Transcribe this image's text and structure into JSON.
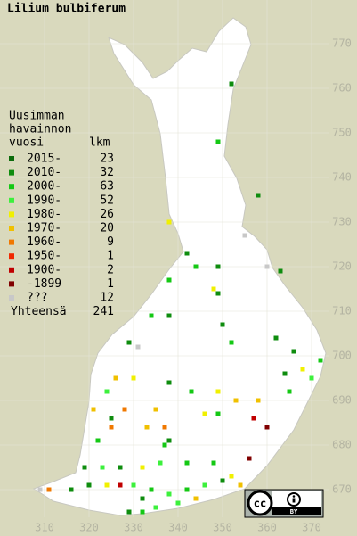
{
  "map": {
    "title": "Lilium bulbiferum",
    "legend": {
      "heading": [
        "Uusimman",
        "havainnon",
        "vuosi"
      ],
      "count_heading": "lkm",
      "items": [
        {
          "label": "2015-",
          "count": 23,
          "color": "#0c6b0c"
        },
        {
          "label": "2010-",
          "count": 32,
          "color": "#0e8c0e"
        },
        {
          "label": "2000-",
          "count": 63,
          "color": "#14c814"
        },
        {
          "label": "1990-",
          "count": 52,
          "color": "#3cf03c"
        },
        {
          "label": "1980-",
          "count": 26,
          "color": "#f0f000"
        },
        {
          "label": "1970-",
          "count": 20,
          "color": "#f0c000"
        },
        {
          "label": "1960-",
          "count": 9,
          "color": "#f07800"
        },
        {
          "label": "1950-",
          "count": 1,
          "color": "#f02800"
        },
        {
          "label": "1900-",
          "count": 2,
          "color": "#c00000"
        },
        {
          "label": "-1899",
          "count": 1,
          "color": "#800000"
        },
        {
          "label": "???",
          "count": 12,
          "color": "#c8c8c8"
        }
      ],
      "total_label": "Yhteensä",
      "total": 241
    },
    "xlim": [
      300,
      380
    ],
    "ylim": [
      660,
      780
    ],
    "xticks": [
      310,
      320,
      330,
      340,
      350,
      360,
      370
    ],
    "yticks": [
      670,
      680,
      690,
      700,
      710,
      720,
      730,
      740,
      750,
      760,
      770
    ],
    "obs": [
      [
        352,
        761,
        1
      ],
      [
        349,
        748,
        2
      ],
      [
        358,
        736,
        1
      ],
      [
        338,
        730,
        4
      ],
      [
        355,
        727,
        10
      ],
      [
        342,
        723,
        1
      ],
      [
        344,
        720,
        2
      ],
      [
        349,
        720,
        1
      ],
      [
        360,
        720,
        10
      ],
      [
        363,
        719,
        1
      ],
      [
        338,
        717,
        2
      ],
      [
        348,
        715,
        4
      ],
      [
        349,
        714,
        1
      ],
      [
        334,
        709,
        2
      ],
      [
        338,
        709,
        1
      ],
      [
        350,
        707,
        1
      ],
      [
        352,
        703,
        2
      ],
      [
        329,
        703,
        1
      ],
      [
        331,
        702,
        10
      ],
      [
        362,
        704,
        1
      ],
      [
        366,
        701,
        1
      ],
      [
        372,
        699,
        2
      ],
      [
        368,
        697,
        4
      ],
      [
        370,
        695,
        3
      ],
      [
        364,
        696,
        1
      ],
      [
        365,
        692,
        2
      ],
      [
        358,
        690,
        5
      ],
      [
        353,
        690,
        5
      ],
      [
        349,
        692,
        4
      ],
      [
        343,
        692,
        2
      ],
      [
        338,
        694,
        1
      ],
      [
        330,
        695,
        4
      ],
      [
        326,
        695,
        5
      ],
      [
        324,
        692,
        3
      ],
      [
        321,
        688,
        5
      ],
      [
        325,
        686,
        1
      ],
      [
        328,
        688,
        6
      ],
      [
        335,
        688,
        5
      ],
      [
        333,
        684,
        5
      ],
      [
        337,
        684,
        6
      ],
      [
        338,
        681,
        1
      ],
      [
        337,
        680,
        2
      ],
      [
        346,
        687,
        4
      ],
      [
        349,
        687,
        2
      ],
      [
        357,
        686,
        8
      ],
      [
        360,
        684,
        9
      ],
      [
        356,
        677,
        9
      ],
      [
        325,
        684,
        6
      ],
      [
        322,
        681,
        2
      ],
      [
        319,
        675,
        1
      ],
      [
        323,
        675,
        3
      ],
      [
        327,
        675,
        1
      ],
      [
        332,
        675,
        4
      ],
      [
        336,
        676,
        3
      ],
      [
        342,
        676,
        2
      ],
      [
        348,
        676,
        2
      ],
      [
        352,
        673,
        4
      ],
      [
        354,
        671,
        5
      ],
      [
        350,
        672,
        1
      ],
      [
        346,
        671,
        3
      ],
      [
        342,
        670,
        2
      ],
      [
        338,
        669,
        3
      ],
      [
        334,
        670,
        2
      ],
      [
        332,
        668,
        1
      ],
      [
        330,
        671,
        3
      ],
      [
        327,
        671,
        8
      ],
      [
        324,
        671,
        4
      ],
      [
        320,
        671,
        1
      ],
      [
        316,
        670,
        1
      ],
      [
        311,
        670,
        6
      ],
      [
        309,
        670,
        10
      ],
      [
        329,
        665,
        1
      ],
      [
        335,
        666,
        3
      ],
      [
        332,
        665,
        2
      ],
      [
        344,
        668,
        5
      ],
      [
        340,
        667,
        3
      ]
    ],
    "license": {
      "cc": "cc",
      "by": "BY"
    }
  }
}
